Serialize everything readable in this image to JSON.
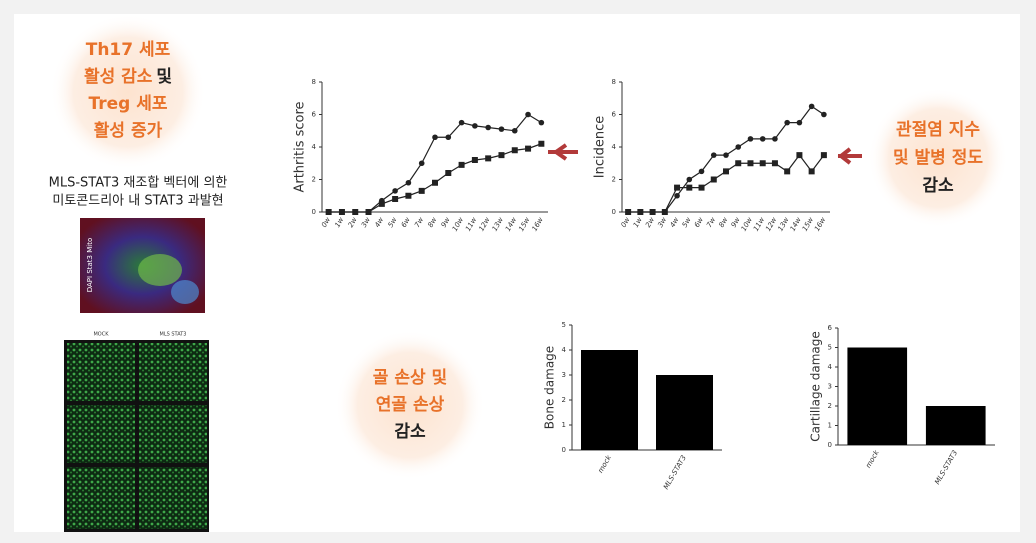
{
  "labels": {
    "th17": [
      [
        "Th17 세포"
      ],
      [
        "활성 감소",
        "및"
      ],
      [
        "Treg 세포"
      ],
      [
        "활성 증가"
      ]
    ],
    "mls": [
      "MLS-STAT3 재조합 벡터에 의한",
      "미토콘드리아 내 STAT3 과발현"
    ],
    "stain": "DAPI Stat3 Mito",
    "panel_cols": [
      "MOCK",
      "MLS STAT3"
    ],
    "arthritis": [
      [
        "관절염 지수"
      ],
      [
        "및 발병 정도"
      ],
      [
        "감소"
      ]
    ],
    "bone": [
      [
        "골 손상 및"
      ],
      [
        "연골 손상"
      ],
      [
        "감소"
      ]
    ]
  },
  "chart_data": [
    {
      "type": "line",
      "y_label": "Arthritis score",
      "categories": [
        "0w",
        "1w",
        "2w",
        "3w",
        "4w",
        "5w",
        "6w",
        "7w",
        "8w",
        "9w",
        "10w",
        "11w",
        "12w",
        "13w",
        "14w",
        "15w",
        "16w"
      ],
      "ylim": [
        0,
        8
      ],
      "yticks": [
        0,
        2,
        4,
        6,
        8
      ],
      "series": [
        {
          "color": "#222222",
          "marker": "circle",
          "values": [
            0,
            0,
            0,
            0,
            0.7,
            1.3,
            1.8,
            3,
            4.6,
            4.6,
            5.5,
            5.3,
            5.2,
            5.1,
            5.0,
            6.0,
            5.5
          ]
        },
        {
          "color": "#222222",
          "marker": "square",
          "values": [
            0,
            0,
            0,
            0,
            0.5,
            0.8,
            1,
            1.3,
            1.8,
            2.4,
            2.9,
            3.2,
            3.3,
            3.5,
            3.8,
            3.9,
            4.2
          ]
        }
      ]
    },
    {
      "type": "line",
      "y_label": "Incidence",
      "categories": [
        "0w",
        "1w",
        "2w",
        "3w",
        "4w",
        "5w",
        "6w",
        "7w",
        "8w",
        "9w",
        "10w",
        "11w",
        "12w",
        "13w",
        "14w",
        "15w",
        "16w"
      ],
      "ylim": [
        0,
        8
      ],
      "yticks": [
        0,
        2,
        4,
        6,
        8
      ],
      "series": [
        {
          "color": "#222222",
          "marker": "circle",
          "values": [
            0,
            0,
            0,
            0,
            1,
            2,
            2.5,
            3.5,
            3.5,
            4,
            4.5,
            4.5,
            4.5,
            5.5,
            5.5,
            6.5,
            6
          ]
        },
        {
          "color": "#222222",
          "marker": "square",
          "values": [
            0,
            0,
            0,
            0,
            1.5,
            1.5,
            1.5,
            2,
            2.5,
            3,
            3,
            3,
            3,
            2.5,
            3.5,
            2.5,
            3.5
          ]
        }
      ]
    },
    {
      "type": "bar",
      "y_label": "Bone damage",
      "color": "#000000",
      "categories": [
        "mock",
        "MLS-STAT3"
      ],
      "values": [
        4,
        3
      ],
      "ylim": [
        0,
        5
      ],
      "yticks": [
        0,
        1,
        2,
        3,
        4,
        5
      ]
    },
    {
      "type": "bar",
      "y_label": "Cartillage damage",
      "color": "#000000",
      "categories": [
        "mock",
        "MLS-STAT3"
      ],
      "values": [
        5,
        2
      ],
      "ylim": [
        0,
        6
      ],
      "yticks": [
        0,
        1,
        2,
        3,
        4,
        5,
        6
      ]
    }
  ]
}
